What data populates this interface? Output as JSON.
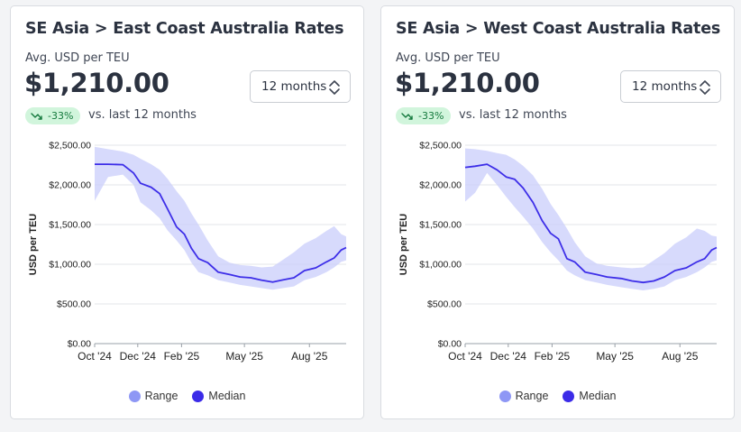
{
  "colors": {
    "range_fill": "#c9cdfb",
    "range_legend": "#8e97f5",
    "median_line": "#3d2ee8",
    "median_legend": "#3b2be8",
    "badge_bg": "#d1f5dc",
    "badge_text": "#14793d",
    "grid": "#e3e5e8"
  },
  "cards": [
    {
      "title": "SE Asia > East Coast Australia Rates",
      "metric_label": "Avg. USD per TEU",
      "metric_value": "$1,210.00",
      "period_select": "12 months",
      "change_badge": "-33%",
      "change_icon": "trend-down-icon",
      "compare_text": "vs. last 12 months",
      "legend": {
        "range_label": "Range",
        "median_label": "Median"
      },
      "chart_data": {
        "type": "area",
        "ylabel": "USD per TEU",
        "xlabel": "",
        "ylim": [
          0,
          2500
        ],
        "y_ticks": [
          "$0.00",
          "$500.00",
          "$1,000.00",
          "$1,500.00",
          "$2,000.00",
          "$2,500.00"
        ],
        "y_tick_values": [
          0,
          500,
          1000,
          1500,
          2000,
          2500
        ],
        "x_ticks": [
          "Oct '24",
          "Dec '24",
          "Feb '25",
          "May '25",
          "Aug '25"
        ],
        "x_tick_dates": [
          "2024-10-01",
          "2024-12-01",
          "2025-02-01",
          "2025-05-01",
          "2025-08-01"
        ],
        "x_range": [
          "2024-10-01",
          "2025-09-22"
        ],
        "grid": true,
        "legend_position": "bottom-center",
        "series": [
          {
            "name": "Median",
            "points": [
              [
                "2024-10-01",
                2260
              ],
              [
                "2024-10-20",
                2260
              ],
              [
                "2024-11-10",
                2255
              ],
              [
                "2024-11-25",
                2150
              ],
              [
                "2024-12-05",
                2020
              ],
              [
                "2024-12-20",
                1970
              ],
              [
                "2025-01-01",
                1890
              ],
              [
                "2025-01-12",
                1700
              ],
              [
                "2025-01-25",
                1470
              ],
              [
                "2025-02-05",
                1380
              ],
              [
                "2025-02-15",
                1200
              ],
              [
                "2025-02-25",
                1070
              ],
              [
                "2025-03-10",
                1020
              ],
              [
                "2025-03-25",
                900
              ],
              [
                "2025-04-10",
                870
              ],
              [
                "2025-04-25",
                840
              ],
              [
                "2025-05-10",
                830
              ],
              [
                "2025-05-25",
                800
              ],
              [
                "2025-06-10",
                775
              ],
              [
                "2025-06-25",
                805
              ],
              [
                "2025-07-10",
                830
              ],
              [
                "2025-07-25",
                920
              ],
              [
                "2025-08-10",
                955
              ],
              [
                "2025-08-25",
                1030
              ],
              [
                "2025-09-05",
                1080
              ],
              [
                "2025-09-15",
                1180
              ],
              [
                "2025-09-22",
                1210
              ]
            ]
          },
          {
            "name": "Range",
            "points": [
              [
                "2024-10-01",
                1800,
                2480
              ],
              [
                "2024-10-20",
                2100,
                2450
              ],
              [
                "2024-11-10",
                2130,
                2420
              ],
              [
                "2024-11-25",
                2000,
                2380
              ],
              [
                "2024-12-05",
                1780,
                2330
              ],
              [
                "2024-12-20",
                1680,
                2260
              ],
              [
                "2025-01-01",
                1580,
                2190
              ],
              [
                "2025-01-12",
                1430,
                2080
              ],
              [
                "2025-01-25",
                1300,
                1920
              ],
              [
                "2025-02-05",
                1180,
                1800
              ],
              [
                "2025-02-15",
                1020,
                1640
              ],
              [
                "2025-02-25",
                900,
                1500
              ],
              [
                "2025-03-10",
                860,
                1300
              ],
              [
                "2025-03-25",
                800,
                1100
              ],
              [
                "2025-04-10",
                770,
                1020
              ],
              [
                "2025-04-25",
                740,
                990
              ],
              [
                "2025-05-10",
                720,
                980
              ],
              [
                "2025-05-25",
                700,
                960
              ],
              [
                "2025-06-10",
                680,
                970
              ],
              [
                "2025-06-25",
                700,
                1060
              ],
              [
                "2025-07-10",
                720,
                1150
              ],
              [
                "2025-07-25",
                800,
                1260
              ],
              [
                "2025-08-10",
                840,
                1330
              ],
              [
                "2025-08-25",
                900,
                1420
              ],
              [
                "2025-09-05",
                960,
                1480
              ],
              [
                "2025-09-15",
                1030,
                1380
              ],
              [
                "2025-09-22",
                1050,
                1350
              ]
            ]
          }
        ]
      }
    },
    {
      "title": "SE Asia > West Coast Australia Rates",
      "metric_label": "Avg. USD per TEU",
      "metric_value": "$1,210.00",
      "period_select": "12 months",
      "change_badge": "-33%",
      "change_icon": "trend-down-icon",
      "compare_text": "vs. last 12 months",
      "legend": {
        "range_label": "Range",
        "median_label": "Median"
      },
      "chart_data": {
        "type": "area",
        "ylabel": "USD per TEU",
        "xlabel": "",
        "ylim": [
          0,
          2500
        ],
        "y_ticks": [
          "$0.00",
          "$500.00",
          "$1,000.00",
          "$1,500.00",
          "$2,000.00",
          "$2,500.00"
        ],
        "y_tick_values": [
          0,
          500,
          1000,
          1500,
          2000,
          2500
        ],
        "x_ticks": [
          "Oct '24",
          "Dec '24",
          "Feb '25",
          "May '25",
          "Aug '25"
        ],
        "x_tick_dates": [
          "2024-10-01",
          "2024-12-01",
          "2025-02-01",
          "2025-05-01",
          "2025-08-01"
        ],
        "x_range": [
          "2024-10-01",
          "2025-09-22"
        ],
        "grid": true,
        "legend_position": "bottom-center",
        "series": [
          {
            "name": "Median",
            "points": [
              [
                "2024-10-01",
                2220
              ],
              [
                "2024-10-15",
                2235
              ],
              [
                "2024-11-01",
                2260
              ],
              [
                "2024-11-15",
                2190
              ],
              [
                "2024-11-28",
                2100
              ],
              [
                "2024-12-10",
                2070
              ],
              [
                "2024-12-22",
                1960
              ],
              [
                "2025-01-05",
                1780
              ],
              [
                "2025-01-18",
                1550
              ],
              [
                "2025-01-30",
                1390
              ],
              [
                "2025-02-10",
                1320
              ],
              [
                "2025-02-22",
                1070
              ],
              [
                "2025-03-05",
                1030
              ],
              [
                "2025-03-20",
                900
              ],
              [
                "2025-04-05",
                870
              ],
              [
                "2025-04-20",
                840
              ],
              [
                "2025-05-10",
                820
              ],
              [
                "2025-05-25",
                790
              ],
              [
                "2025-06-10",
                770
              ],
              [
                "2025-06-25",
                790
              ],
              [
                "2025-07-10",
                840
              ],
              [
                "2025-07-25",
                920
              ],
              [
                "2025-08-10",
                955
              ],
              [
                "2025-08-25",
                1030
              ],
              [
                "2025-09-05",
                1070
              ],
              [
                "2025-09-15",
                1180
              ],
              [
                "2025-09-22",
                1210
              ]
            ]
          },
          {
            "name": "Range",
            "points": [
              [
                "2024-10-01",
                1790,
                2460
              ],
              [
                "2024-10-15",
                1900,
                2450
              ],
              [
                "2024-11-01",
                2150,
                2430
              ],
              [
                "2024-11-15",
                2000,
                2400
              ],
              [
                "2024-11-28",
                1850,
                2380
              ],
              [
                "2024-12-10",
                1720,
                2320
              ],
              [
                "2024-12-22",
                1600,
                2240
              ],
              [
                "2025-01-05",
                1450,
                2120
              ],
              [
                "2025-01-18",
                1280,
                1950
              ],
              [
                "2025-01-30",
                1150,
                1760
              ],
              [
                "2025-02-10",
                1050,
                1620
              ],
              [
                "2025-02-22",
                920,
                1450
              ],
              [
                "2025-03-05",
                860,
                1280
              ],
              [
                "2025-03-20",
                800,
                1100
              ],
              [
                "2025-04-05",
                770,
                1010
              ],
              [
                "2025-04-20",
                740,
                980
              ],
              [
                "2025-05-10",
                710,
                960
              ],
              [
                "2025-05-25",
                690,
                950
              ],
              [
                "2025-06-10",
                670,
                960
              ],
              [
                "2025-06-25",
                690,
                1050
              ],
              [
                "2025-07-10",
                720,
                1140
              ],
              [
                "2025-07-25",
                800,
                1260
              ],
              [
                "2025-08-10",
                840,
                1340
              ],
              [
                "2025-08-25",
                900,
                1450
              ],
              [
                "2025-09-05",
                960,
                1420
              ],
              [
                "2025-09-15",
                1030,
                1360
              ],
              [
                "2025-09-22",
                1050,
                1350
              ]
            ]
          }
        ]
      }
    }
  ]
}
